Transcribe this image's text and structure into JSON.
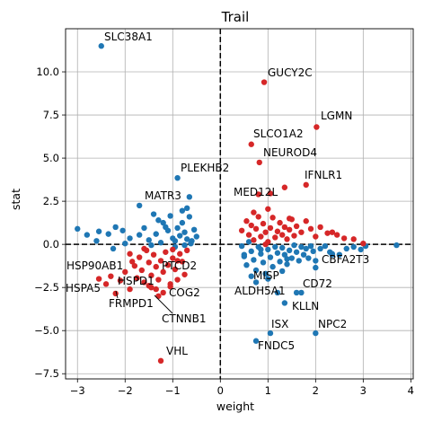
{
  "chart_data": {
    "type": "scatter",
    "title": "Trail",
    "xlabel": "weight",
    "ylabel": "stat",
    "xlim": [
      -3.25,
      4.05
    ],
    "ylim": [
      -7.8,
      12.5
    ],
    "xticks": [
      -3,
      -2,
      -1,
      0,
      1,
      2,
      3,
      4
    ],
    "yticks": [
      -7.5,
      -5.0,
      -2.5,
      0.0,
      2.5,
      5.0,
      7.5,
      10.0
    ],
    "ytick_labels": [
      "−7.5",
      "−5.0",
      "−2.5",
      "0.0",
      "2.5",
      "5.0",
      "7.5",
      "10.0"
    ],
    "xtick_labels": [
      "−3",
      "−2",
      "−1",
      "0",
      "1",
      "2",
      "3",
      "4"
    ],
    "grid": true,
    "reference_lines": {
      "x": 0,
      "y": 0,
      "style": "dashed"
    },
    "colors": {
      "blue": "#1f77b4",
      "red": "#d62728"
    },
    "series": [
      {
        "color": "blue",
        "points": [
          [
            -2.5,
            11.5
          ],
          [
            -0.9,
            3.85
          ],
          [
            -0.65,
            2.75
          ],
          [
            -1.7,
            2.25
          ],
          [
            -0.7,
            2.1
          ],
          [
            -0.8,
            1.95
          ],
          [
            -1.4,
            1.75
          ],
          [
            -3.0,
            0.9
          ],
          [
            -2.8,
            0.55
          ],
          [
            -2.6,
            0.2
          ],
          [
            -2.55,
            0.75
          ],
          [
            -2.35,
            0.6
          ],
          [
            -2.2,
            1.0
          ],
          [
            -2.05,
            0.8
          ],
          [
            -1.9,
            0.35
          ],
          [
            -1.7,
            0.55
          ],
          [
            -1.6,
            0.95
          ],
          [
            -1.5,
            0.25
          ],
          [
            -1.35,
            0.6
          ],
          [
            -1.25,
            0.1
          ],
          [
            -1.3,
            1.4
          ],
          [
            -1.15,
            1.0
          ],
          [
            -1.1,
            0.8
          ],
          [
            -1.0,
            0.35
          ],
          [
            -0.95,
            0.2
          ],
          [
            -0.85,
            0.5
          ],
          [
            -0.8,
            1.25
          ],
          [
            -0.75,
            0.7
          ],
          [
            -0.7,
            0.3
          ],
          [
            -0.65,
            1.6
          ],
          [
            -0.6,
            0.2
          ],
          [
            -0.55,
            0.85
          ],
          [
            -0.5,
            0.45
          ],
          [
            -0.75,
            -0.05
          ],
          [
            -1.2,
            1.25
          ],
          [
            -1.45,
            -0.05
          ],
          [
            -1.05,
            1.65
          ],
          [
            -0.9,
            0.95
          ],
          [
            -2.0,
            0.05
          ],
          [
            -2.25,
            -0.25
          ],
          [
            -0.95,
            -0.15
          ],
          [
            -0.62,
            0.05
          ],
          [
            0.45,
            -0.1
          ],
          [
            0.5,
            -0.7
          ],
          [
            0.55,
            -1.2
          ],
          [
            0.6,
            0.15
          ],
          [
            0.65,
            -0.4
          ],
          [
            0.7,
            -0.9
          ],
          [
            0.75,
            -1.5
          ],
          [
            0.8,
            -0.15
          ],
          [
            0.85,
            -0.55
          ],
          [
            0.9,
            -1.05
          ],
          [
            0.95,
            -1.7
          ],
          [
            1.0,
            -0.3
          ],
          [
            1.05,
            -0.75
          ],
          [
            1.1,
            -1.3
          ],
          [
            1.15,
            -0.15
          ],
          [
            1.2,
            -0.5
          ],
          [
            1.25,
            -1.0
          ],
          [
            1.3,
            -0.2
          ],
          [
            1.35,
            -0.6
          ],
          [
            1.4,
            -1.15
          ],
          [
            1.45,
            -0.35
          ],
          [
            1.5,
            -0.8
          ],
          [
            1.55,
            -0.05
          ],
          [
            1.6,
            -0.45
          ],
          [
            1.65,
            -0.95
          ],
          [
            1.7,
            -0.15
          ],
          [
            1.75,
            -0.6
          ],
          [
            1.8,
            -0.25
          ],
          [
            1.85,
            -0.8
          ],
          [
            1.9,
            -0.1
          ],
          [
            1.95,
            -0.4
          ],
          [
            2.0,
            -0.95
          ],
          [
            2.1,
            -0.25
          ],
          [
            2.2,
            -0.1
          ],
          [
            2.3,
            -0.45
          ],
          [
            2.0,
            -1.35
          ],
          [
            2.35,
            -0.55
          ],
          [
            2.5,
            -0.6
          ],
          [
            2.65,
            -0.25
          ],
          [
            2.8,
            -0.15
          ],
          [
            2.95,
            -0.3
          ],
          [
            3.05,
            -0.1
          ],
          [
            3.7,
            -0.05
          ],
          [
            1.3,
            -1.55
          ],
          [
            1.0,
            -2.0
          ],
          [
            1.6,
            -2.8
          ],
          [
            1.7,
            -2.8
          ],
          [
            1.2,
            -2.8
          ],
          [
            1.35,
            -3.4
          ],
          [
            0.75,
            -2.2
          ],
          [
            0.65,
            -1.85
          ],
          [
            0.5,
            -0.6
          ],
          [
            1.05,
            -5.15
          ],
          [
            0.75,
            -5.6
          ],
          [
            2.0,
            -5.15
          ],
          [
            2.35,
            -0.6
          ],
          [
            1.4,
            -0.85
          ],
          [
            0.85,
            -0.3
          ]
        ]
      },
      {
        "color": "red",
        "points": [
          [
            0.92,
            9.4
          ],
          [
            2.02,
            6.8
          ],
          [
            0.65,
            5.8
          ],
          [
            0.82,
            4.75
          ],
          [
            1.8,
            3.45
          ],
          [
            1.35,
            3.3
          ],
          [
            0.8,
            2.9
          ],
          [
            1.05,
            2.95
          ],
          [
            0.45,
            0.8
          ],
          [
            0.55,
            1.35
          ],
          [
            0.6,
            0.55
          ],
          [
            0.65,
            1.1
          ],
          [
            0.7,
            0.25
          ],
          [
            0.75,
            0.9
          ],
          [
            0.8,
            1.6
          ],
          [
            0.85,
            0.45
          ],
          [
            0.9,
            1.2
          ],
          [
            0.95,
            0.7
          ],
          [
            1.0,
            0.15
          ],
          [
            1.05,
            0.95
          ],
          [
            1.1,
            1.55
          ],
          [
            1.15,
            0.4
          ],
          [
            1.2,
            0.75
          ],
          [
            1.25,
            1.25
          ],
          [
            1.3,
            0.55
          ],
          [
            1.35,
            1.0
          ],
          [
            1.4,
            0.3
          ],
          [
            1.45,
            0.85
          ],
          [
            1.5,
            1.45
          ],
          [
            1.55,
            0.5
          ],
          [
            1.6,
            1.05
          ],
          [
            1.7,
            0.7
          ],
          [
            1.8,
            1.35
          ],
          [
            1.9,
            0.9
          ],
          [
            2.0,
            0.45
          ],
          [
            2.1,
            1.0
          ],
          [
            2.25,
            0.65
          ],
          [
            2.45,
            0.55
          ],
          [
            2.6,
            0.35
          ],
          [
            2.8,
            0.3
          ],
          [
            3.0,
            0.05
          ],
          [
            2.35,
            0.7
          ],
          [
            0.7,
            1.85
          ],
          [
            1.0,
            2.05
          ],
          [
            1.45,
            1.5
          ],
          [
            0.95,
            0.0
          ],
          [
            -2.4,
            -2.3
          ],
          [
            -2.55,
            -2.0
          ],
          [
            -2.3,
            -1.85
          ],
          [
            -2.1,
            -2.1
          ],
          [
            -2.2,
            -2.85
          ],
          [
            -1.9,
            -2.6
          ],
          [
            -1.9,
            -0.55
          ],
          [
            -1.8,
            -1.25
          ],
          [
            -1.7,
            -0.75
          ],
          [
            -1.65,
            -1.5
          ],
          [
            -1.55,
            -0.35
          ],
          [
            -1.5,
            -1.05
          ],
          [
            -1.45,
            -1.8
          ],
          [
            -1.4,
            -0.6
          ],
          [
            -1.35,
            -1.3
          ],
          [
            -1.3,
            -2.05
          ],
          [
            -1.25,
            -0.95
          ],
          [
            -1.2,
            -1.6
          ],
          [
            -1.15,
            -0.45
          ],
          [
            -1.1,
            -1.2
          ],
          [
            -1.05,
            -2.3
          ],
          [
            -1.0,
            -0.8
          ],
          [
            -0.95,
            -1.45
          ],
          [
            -0.9,
            -2.05
          ],
          [
            -0.85,
            -0.55
          ],
          [
            -0.8,
            -1.0
          ],
          [
            -0.75,
            -1.75
          ],
          [
            -0.7,
            -0.35
          ],
          [
            -1.6,
            -2.2
          ],
          [
            -1.35,
            -2.6
          ],
          [
            -1.3,
            -3.0
          ],
          [
            -1.5,
            -2.4
          ],
          [
            -1.2,
            -2.8
          ],
          [
            -1.75,
            -1.95
          ],
          [
            -2.0,
            -1.6
          ],
          [
            -1.85,
            -1.0
          ],
          [
            -1.45,
            -2.5
          ],
          [
            -1.0,
            -0.3
          ],
          [
            -1.25,
            -6.75
          ],
          [
            -1.05,
            -2.45
          ],
          [
            -0.9,
            -0.95
          ],
          [
            -1.6,
            -0.25
          ]
        ]
      }
    ],
    "annotations": [
      {
        "label": "SLC38A1"
      },
      {
        "label": "GUCY2C"
      },
      {
        "label": "LGMN"
      },
      {
        "label": "SLCO1A2"
      },
      {
        "label": "NEUROD4"
      },
      {
        "label": "IFNLR1"
      },
      {
        "label": "MED12L"
      },
      {
        "label": "PLEKHB2"
      },
      {
        "label": "MATR3"
      },
      {
        "label": "HSP90AB1"
      },
      {
        "label": "PTCD2"
      },
      {
        "label": "HSPA5"
      },
      {
        "label": "HSPD1"
      },
      {
        "label": "COG2"
      },
      {
        "label": "FRMPD1"
      },
      {
        "label": "CTNNB1"
      },
      {
        "label": "VHL"
      },
      {
        "label": "CBFA2T3"
      },
      {
        "label": "MISP"
      },
      {
        "label": "CD72"
      },
      {
        "label": "ALDH5A1"
      },
      {
        "label": "KLLN"
      },
      {
        "label": "ISX"
      },
      {
        "label": "NPC2"
      },
      {
        "label": "FNDC5"
      }
    ]
  }
}
